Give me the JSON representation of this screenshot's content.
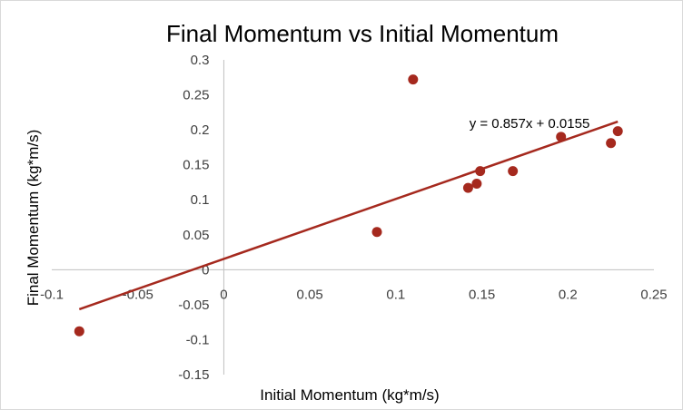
{
  "chart_data": {
    "type": "scatter",
    "title": "Final Momentum vs Initial Momentum",
    "xlabel": "Initial Momentum (kg*m/s)",
    "ylabel": "Final Momentum (kg*m/s)",
    "xlim": [
      -0.1,
      0.25
    ],
    "ylim": [
      -0.15,
      0.3
    ],
    "x_ticks": [
      "-0.1",
      "-0.05",
      "0",
      "0.05",
      "0.1",
      "0.15",
      "0.2",
      "0.25"
    ],
    "y_ticks": [
      "0.3",
      "0.25",
      "0.2",
      "0.15",
      "0.1",
      "0.05",
      "0",
      "-0.05",
      "-0.1",
      "-0.15"
    ],
    "grid": false,
    "legend": "none",
    "points": [
      {
        "x": -0.084,
        "y": -0.088
      },
      {
        "x": 0.089,
        "y": 0.054
      },
      {
        "x": 0.11,
        "y": 0.272
      },
      {
        "x": 0.142,
        "y": 0.117
      },
      {
        "x": 0.147,
        "y": 0.123
      },
      {
        "x": 0.149,
        "y": 0.141
      },
      {
        "x": 0.168,
        "y": 0.141
      },
      {
        "x": 0.196,
        "y": 0.19
      },
      {
        "x": 0.225,
        "y": 0.181
      },
      {
        "x": 0.229,
        "y": 0.198
      }
    ],
    "trendline": {
      "slope": 0.857,
      "intercept": 0.0155,
      "x_range": [
        -0.084,
        0.229
      ],
      "equation_label": "y = 0.857x + 0.0155"
    },
    "colors": {
      "marker": "#a5291e",
      "trendline": "#a5291e",
      "axis": "#bfbfbf"
    }
  }
}
